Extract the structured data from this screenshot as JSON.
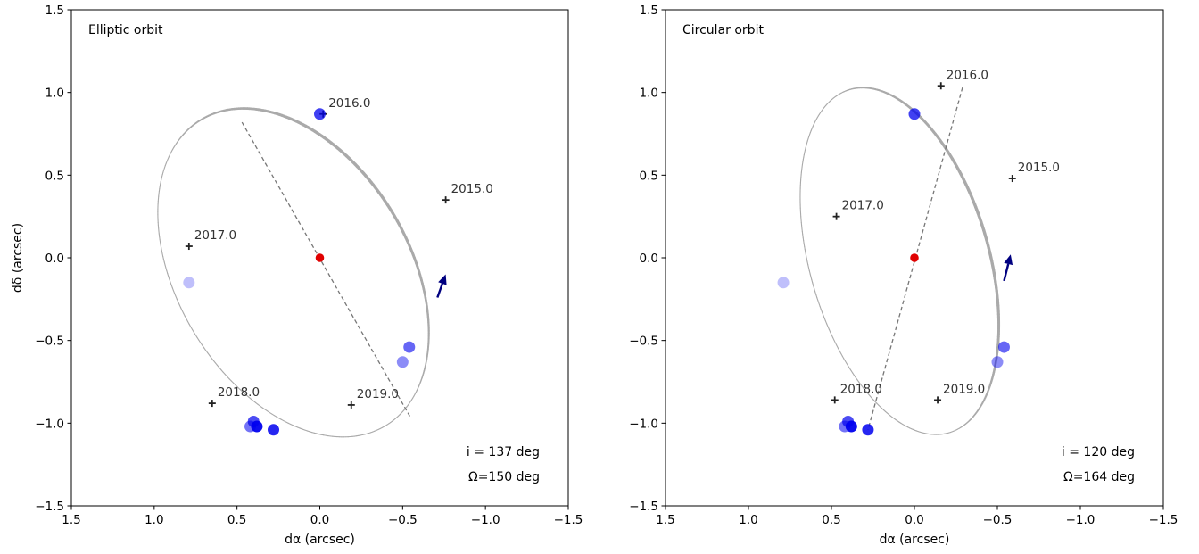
{
  "chart_data": [
    {
      "type": "scatter",
      "title": "Elliptic orbit",
      "xlabel": "dα (arcsec)",
      "ylabel": "dδ (arcsec)",
      "xlim": [
        1.5,
        -1.5
      ],
      "ylim": [
        -1.5,
        1.5
      ],
      "xticks": [
        "1.5",
        "1.0",
        "0.5",
        "0.0",
        "−0.5",
        "−1.0",
        "−1.5"
      ],
      "yticks": [
        "1.5",
        "1.0",
        "0.5",
        "0.0",
        "−0.5",
        "−1.0",
        "−1.5"
      ],
      "annotation_lines": [
        "i = 137 deg",
        "Ω=150 deg"
      ],
      "primary": {
        "x": 0.0,
        "y": 0.0,
        "color": "#e00000"
      },
      "orbit_color": "#aaaaaa",
      "orbit": {
        "center": [
          0.16,
          -0.09
        ],
        "semi_major": 1.08,
        "semi_minor": 0.7,
        "angle_deg": 59
      },
      "node_line": {
        "x1": 0.47,
        "y1": 0.82,
        "x2": -0.55,
        "y2": -0.97
      },
      "epochs": [
        {
          "label": "2015.0",
          "x": -0.76,
          "y": 0.35
        },
        {
          "label": "2016.0",
          "x": -0.02,
          "y": 0.87
        },
        {
          "label": "2017.0",
          "x": 0.79,
          "y": 0.07
        },
        {
          "label": "2018.0",
          "x": 0.65,
          "y": -0.88
        },
        {
          "label": "2019.0",
          "x": -0.19,
          "y": -0.89
        }
      ],
      "arrow": {
        "x1": -0.71,
        "y1": -0.24,
        "x2": -0.76,
        "y2": -0.1,
        "color": "#000080"
      },
      "observations": [
        {
          "x": 0.0,
          "y": 0.87,
          "alpha": 0.75
        },
        {
          "x": 0.79,
          "y": -0.15,
          "alpha": 0.25
        },
        {
          "x": -0.54,
          "y": -0.54,
          "alpha": 0.6
        },
        {
          "x": -0.5,
          "y": -0.63,
          "alpha": 0.45
        },
        {
          "x": 0.42,
          "y": -1.02,
          "alpha": 0.55
        },
        {
          "x": 0.4,
          "y": -0.99,
          "alpha": 0.7
        },
        {
          "x": 0.38,
          "y": -1.02,
          "alpha": 0.95
        },
        {
          "x": 0.28,
          "y": -1.04,
          "alpha": 0.85
        }
      ]
    },
    {
      "type": "scatter",
      "title": "Circular orbit",
      "xlabel": "dα (arcsec)",
      "ylabel": "",
      "xlim": [
        1.5,
        -1.5
      ],
      "ylim": [
        -1.5,
        1.5
      ],
      "xticks": [
        "1.5",
        "1.0",
        "0.5",
        "0.0",
        "−0.5",
        "−1.0",
        "−1.5"
      ],
      "yticks": [
        "1.5",
        "1.0",
        "0.5",
        "0.0",
        "−0.5",
        "−1.0",
        "−1.5"
      ],
      "annotation_lines": [
        "i = 120 deg",
        "Ω=164 deg"
      ],
      "primary": {
        "x": 0.0,
        "y": 0.0,
        "color": "#e00000"
      },
      "orbit_color": "#aaaaaa",
      "orbit": {
        "center": [
          0.09,
          -0.02
        ],
        "semi_major": 1.08,
        "semi_minor": 0.54,
        "angle_deg": 74
      },
      "node_line": {
        "x1": -0.29,
        "y1": 1.03,
        "x2": 0.28,
        "y2": -1.04
      },
      "epochs": [
        {
          "label": "2015.0",
          "x": -0.59,
          "y": 0.48
        },
        {
          "label": "2016.0",
          "x": -0.16,
          "y": 1.04
        },
        {
          "label": "2017.0",
          "x": 0.47,
          "y": 0.25
        },
        {
          "label": "2018.0",
          "x": 0.48,
          "y": -0.86
        },
        {
          "label": "2019.0",
          "x": -0.14,
          "y": -0.86
        }
      ],
      "arrow": {
        "x1": -0.54,
        "y1": -0.14,
        "x2": -0.58,
        "y2": 0.02,
        "color": "#000080"
      },
      "observations": [
        {
          "x": 0.0,
          "y": 0.87,
          "alpha": 0.75
        },
        {
          "x": 0.79,
          "y": -0.15,
          "alpha": 0.25
        },
        {
          "x": -0.54,
          "y": -0.54,
          "alpha": 0.6
        },
        {
          "x": -0.5,
          "y": -0.63,
          "alpha": 0.45
        },
        {
          "x": 0.42,
          "y": -1.02,
          "alpha": 0.55
        },
        {
          "x": 0.4,
          "y": -0.99,
          "alpha": 0.7
        },
        {
          "x": 0.38,
          "y": -1.02,
          "alpha": 0.95
        },
        {
          "x": 0.28,
          "y": -1.04,
          "alpha": 0.85
        }
      ]
    }
  ]
}
